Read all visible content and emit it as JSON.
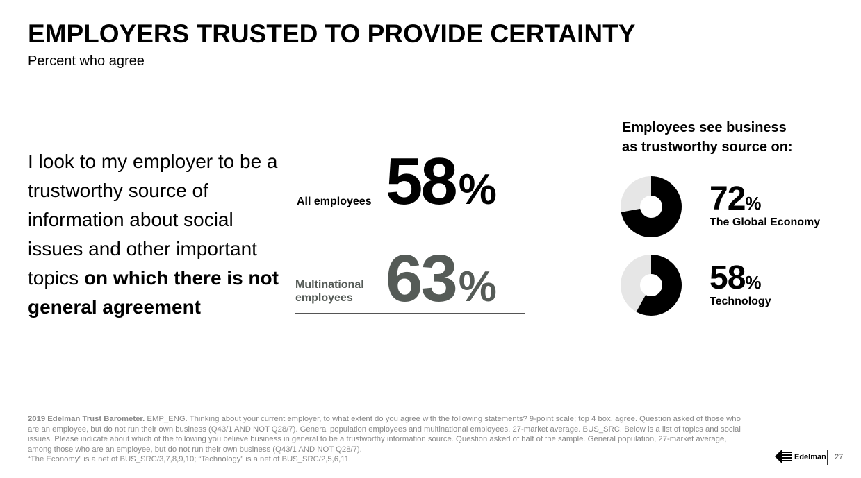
{
  "header": {
    "title": "EMPLOYERS TRUSTED TO PROVIDE CERTAINTY",
    "subtitle": "Percent who agree"
  },
  "statement": {
    "regular": "I look to my employer to be a trustworthy source of information about social issues and other important topics ",
    "bold": "on which there is not general agreement"
  },
  "stats": [
    {
      "label": "All employees",
      "value": "58",
      "unit": "%",
      "color": "#000000"
    },
    {
      "label_line1": "Multinational",
      "label_line2": "employees",
      "value": "63",
      "unit": "%",
      "color": "#555b57"
    }
  ],
  "side": {
    "heading_line1": "Employees see business",
    "heading_line2": "as trustworthy source on:",
    "donuts": [
      {
        "value": "72",
        "unit": "%",
        "label": "The Global Economy",
        "fraction": 0.72
      },
      {
        "value": "58",
        "unit": "%",
        "label": "Technology",
        "fraction": 0.58
      }
    ],
    "colors": {
      "fill": "#000000",
      "track": "#e6e6e6"
    }
  },
  "footnote": {
    "bold": "2019 Edelman Trust Barometer.",
    "text": " EMP_ENG. Thinking about your current employer, to what extent do you agree with the following statements? 9-point scale; top 4 box, agree. Question asked of those who are an employee, but do not run their own business (Q43/1 AND NOT Q28/7). General population employees and multinational employees, 27-market average. BUS_SRC. Below is a list of topics and social issues. Please indicate about which of the following you believe business in general to be a trustworthy information source. Question asked of half of the sample. General population, 27-market average, among those who are an employee, but do not run their own business (Q43/1 AND NOT Q28/7).",
    "line2": "“The Economy” is a net of BUS_SRC/3,7,8,9,10; “Technology” is a net of BUS_SRC/2,5,6,11."
  },
  "footer": {
    "logo": "Edelman",
    "page": "27"
  }
}
